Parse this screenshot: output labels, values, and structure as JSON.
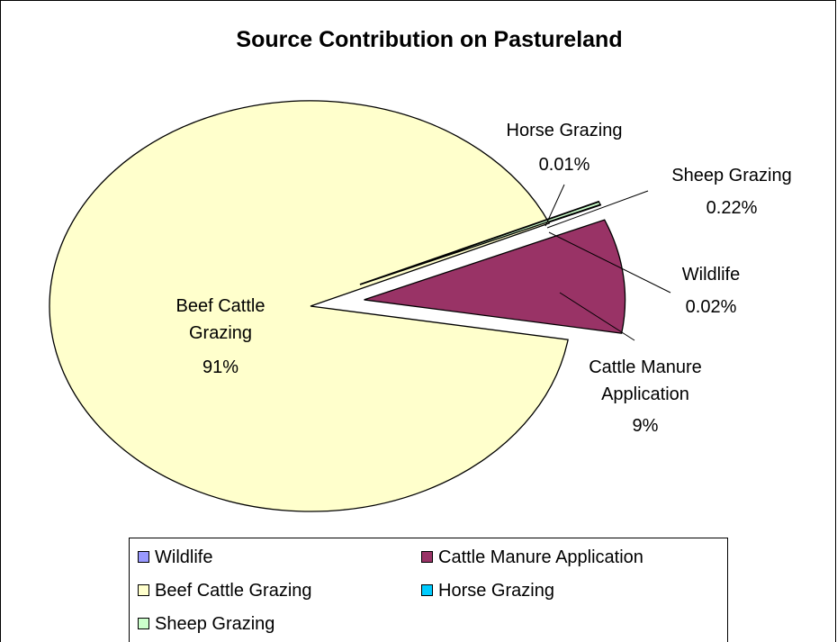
{
  "chart_data": {
    "type": "pie",
    "title": "Source Contribution on Pastureland",
    "categories": [
      "Wildlife",
      "Cattle Manure Application",
      "Beef Cattle Grazing",
      "Horse Grazing",
      "Sheep Grazing"
    ],
    "values": [
      0.02,
      9,
      91,
      0.01,
      0.22
    ],
    "value_labels": [
      "0.02%",
      "9%",
      "91%",
      "0.01%",
      "0.22%"
    ],
    "colors": [
      "#9999ff",
      "#993366",
      "#ffffcc",
      "#00ccff",
      "#ccffcc"
    ],
    "legend": "bottom"
  }
}
